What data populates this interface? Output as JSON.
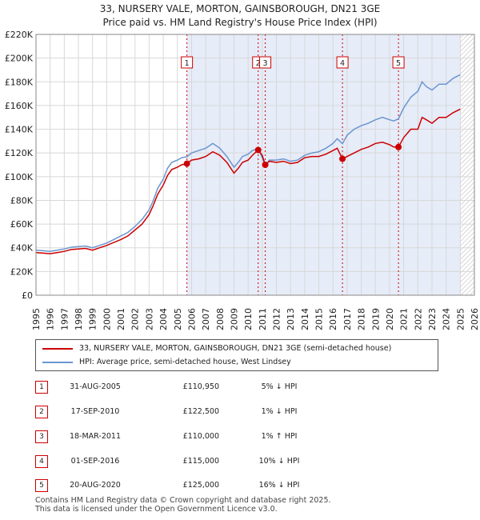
{
  "title_line1": "33, NURSERY VALE, MORTON, GAINSBOROUGH, DN21 3GE",
  "title_line2": "Price paid vs. HM Land Registry's House Price Index (HPI)",
  "legend": {
    "series1": "33, NURSERY VALE, MORTON, GAINSBOROUGH, DN21 3GE (semi-detached house)",
    "series2": "HPI: Average price, semi-detached house, West Lindsey"
  },
  "sales": [
    {
      "num": "1",
      "date": "31-AUG-2005",
      "price": "£110,950",
      "hpi": "5% ↓ HPI"
    },
    {
      "num": "2",
      "date": "17-SEP-2010",
      "price": "£122,500",
      "hpi": "1% ↓ HPI"
    },
    {
      "num": "3",
      "date": "18-MAR-2011",
      "price": "£110,000",
      "hpi": "1% ↑ HPI"
    },
    {
      "num": "4",
      "date": "01-SEP-2016",
      "price": "£115,000",
      "hpi": "10% ↓ HPI"
    },
    {
      "num": "5",
      "date": "20-AUG-2020",
      "price": "£125,000",
      "hpi": "16% ↓ HPI"
    }
  ],
  "footer_line1": "Contains HM Land Registry data © Crown copyright and database right 2025.",
  "footer_line2": "This data is licensed under the Open Government Licence v3.0.",
  "colors": {
    "price": "#cc0000",
    "hpi": "#6a96d0",
    "shade": "#e6ecf8",
    "grid": "#d8d8d8"
  },
  "chart_data": {
    "type": "line",
    "title": "33, NURSERY VALE, MORTON, GAINSBOROUGH, DN21 3GE - Price paid vs. HM Land Registry's House Price Index (HPI)",
    "xlabel": "",
    "ylabel": "",
    "xlim": [
      1995,
      2026
    ],
    "ylim": [
      0,
      220000
    ],
    "x_ticks": [
      1995,
      1996,
      1997,
      1998,
      1999,
      2000,
      2001,
      2002,
      2003,
      2004,
      2005,
      2006,
      2007,
      2008,
      2009,
      2010,
      2011,
      2012,
      2013,
      2014,
      2015,
      2016,
      2017,
      2018,
      2019,
      2020,
      2021,
      2022,
      2023,
      2024,
      2025,
      2026
    ],
    "y_ticks": [
      0,
      20000,
      40000,
      60000,
      80000,
      100000,
      120000,
      140000,
      160000,
      180000,
      200000,
      220000
    ],
    "y_tick_labels": [
      "£0",
      "£20K",
      "£40K",
      "£60K",
      "£80K",
      "£100K",
      "£120K",
      "£140K",
      "£160K",
      "£180K",
      "£200K",
      "£220K"
    ],
    "shaded_range": [
      2005.67,
      2025.0
    ],
    "hatched_from": 2025.0,
    "series": [
      {
        "name": "33, NURSERY VALE, MORTON, GAINSBOROUGH, DN21 3GE (semi-detached house)",
        "x": [
          1995,
          1995.5,
          1996,
          1996.5,
          1997,
          1997.5,
          1998,
          1998.5,
          1999,
          1999.5,
          2000,
          2000.5,
          2001,
          2001.5,
          2002,
          2002.5,
          2003,
          2003.3,
          2003.6,
          2004,
          2004.3,
          2004.6,
          2005,
          2005.3,
          2005.67,
          2006,
          2006.5,
          2007,
          2007.5,
          2008,
          2008.5,
          2009,
          2009.3,
          2009.6,
          2010,
          2010.3,
          2010.71,
          2011,
          2011.21,
          2011.5,
          2012,
          2012.5,
          2013,
          2013.5,
          2014,
          2014.5,
          2015,
          2015.5,
          2016,
          2016.3,
          2016.67,
          2017,
          2017.5,
          2018,
          2018.5,
          2019,
          2019.5,
          2020,
          2020.3,
          2020.63,
          2021,
          2021.5,
          2022,
          2022.3,
          2022.6,
          2023,
          2023.5,
          2024,
          2024.5,
          2025
        ],
        "y": [
          36000,
          35500,
          35000,
          36000,
          37000,
          38500,
          39000,
          39500,
          38000,
          40000,
          42000,
          44500,
          47000,
          50000,
          55000,
          60000,
          68000,
          76000,
          85000,
          93000,
          101000,
          106000,
          108000,
          110000,
          110950,
          114000,
          115000,
          117000,
          121000,
          118000,
          112000,
          103000,
          107000,
          112000,
          114000,
          118000,
          122500,
          118000,
          110000,
          113000,
          112000,
          113000,
          111000,
          112000,
          116000,
          117000,
          117000,
          119000,
          122000,
          124000,
          115000,
          117000,
          120000,
          123000,
          125000,
          128000,
          129000,
          127000,
          125000,
          125000,
          133000,
          140000,
          140000,
          150000,
          148000,
          145000,
          150000,
          150000,
          154000,
          157000
        ]
      },
      {
        "name": "HPI: Average price, semi-detached house, West Lindsey",
        "x": [
          1995,
          1995.5,
          1996,
          1996.5,
          1997,
          1997.5,
          1998,
          1998.5,
          1999,
          1999.5,
          2000,
          2000.5,
          2001,
          2001.5,
          2002,
          2002.5,
          2003,
          2003.3,
          2003.6,
          2004,
          2004.3,
          2004.6,
          2005,
          2005.3,
          2005.67,
          2006,
          2006.5,
          2007,
          2007.5,
          2008,
          2008.5,
          2009,
          2009.3,
          2009.6,
          2010,
          2010.3,
          2010.71,
          2011,
          2011.21,
          2011.5,
          2012,
          2012.5,
          2013,
          2013.5,
          2014,
          2014.5,
          2015,
          2015.5,
          2016,
          2016.3,
          2016.67,
          2017,
          2017.5,
          2018,
          2018.5,
          2019,
          2019.5,
          2020,
          2020.3,
          2020.63,
          2021,
          2021.5,
          2022,
          2022.3,
          2022.6,
          2023,
          2023.5,
          2024,
          2024.5,
          2025
        ],
        "y": [
          38000,
          37500,
          37000,
          38000,
          39000,
          40500,
          41000,
          41500,
          40000,
          42000,
          44000,
          47000,
          50000,
          53000,
          58000,
          64000,
          72000,
          80000,
          90000,
          98000,
          107000,
          112000,
          114000,
          116000,
          116800,
          120000,
          122000,
          124000,
          128000,
          124000,
          117000,
          108000,
          112000,
          117000,
          119000,
          122000,
          123700,
          116000,
          108900,
          114000,
          114000,
          115000,
          113000,
          114000,
          118000,
          120000,
          121000,
          124000,
          128000,
          132000,
          127800,
          135000,
          140000,
          143000,
          145000,
          148000,
          150000,
          148000,
          147000,
          148800,
          158000,
          167000,
          172000,
          180000,
          176000,
          173000,
          178000,
          178000,
          183000,
          186000
        ]
      }
    ],
    "sales": [
      {
        "label": "1",
        "x": 2005.67,
        "price": 110950
      },
      {
        "label": "2",
        "x": 2010.71,
        "price": 122500
      },
      {
        "label": "3",
        "x": 2011.21,
        "price": 110000
      },
      {
        "label": "4",
        "x": 2016.67,
        "price": 115000
      },
      {
        "label": "5",
        "x": 2020.63,
        "price": 125000
      }
    ]
  }
}
